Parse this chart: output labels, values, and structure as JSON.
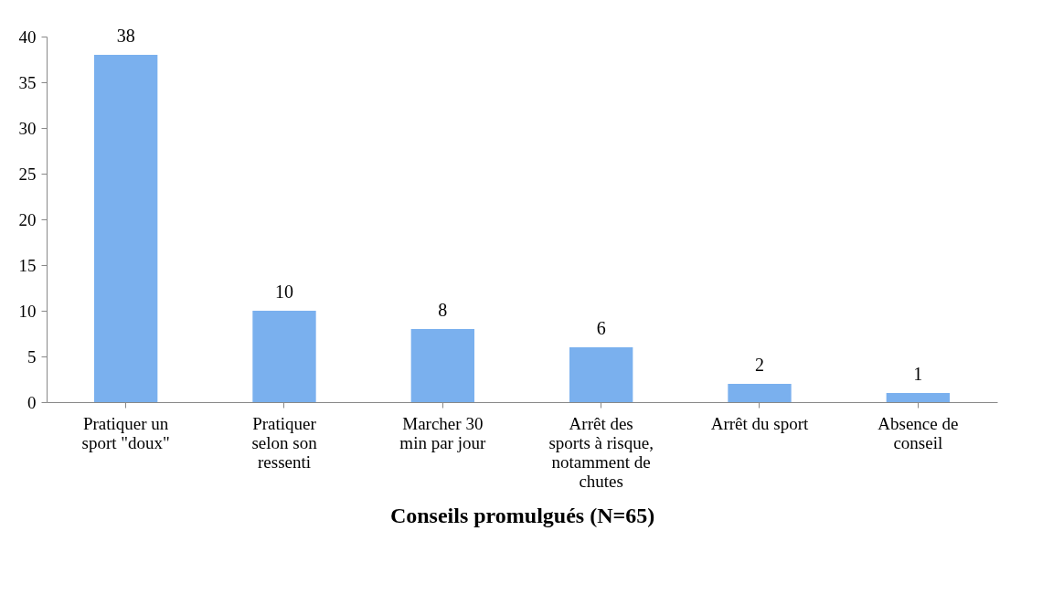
{
  "chart_data": {
    "type": "bar",
    "xlabel": "Conseils promulgués (N=65)",
    "categories": [
      "Pratiquer un\nsport \"doux\"",
      "Pratiquer\nselon son\nressenti",
      "Marcher 30\nmin par jour",
      "Arrêt des\nsports à risque,\nnotamment de\nchutes",
      "Arrêt du sport",
      "Absence de\nconseil"
    ],
    "values": [
      38,
      10,
      8,
      6,
      2,
      1
    ],
    "color": "#7ab0ee",
    "ylim": [
      0,
      40
    ],
    "yticks": [
      0,
      5,
      10,
      15,
      20,
      25,
      30,
      35,
      40
    ],
    "data_labels": true,
    "grid": false
  }
}
